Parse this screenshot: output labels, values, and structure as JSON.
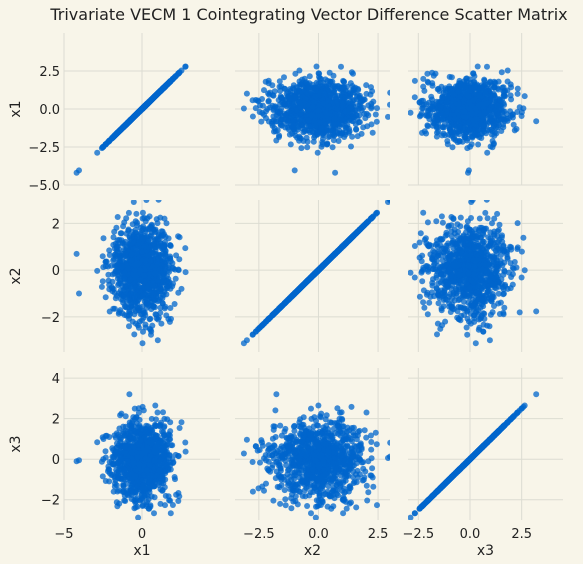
{
  "chart_data": {
    "type": "scatter_matrix",
    "title": "Trivariate VECM 1 Cointegrating Vector Difference Scatter Matrix",
    "variables": [
      "x1",
      "x2",
      "x3"
    ],
    "ranges": {
      "x1": [
        -5.0,
        5.0
      ],
      "x2": [
        -3.5,
        3.0
      ],
      "x3": [
        -3.0,
        4.5
      ]
    },
    "ticks": {
      "x1": {
        "row": [
          2.5,
          0.0,
          -2.5,
          -5.0
        ],
        "row_labels": [
          "2.5",
          "0.0",
          "−2.5",
          "−5.0"
        ],
        "col": [
          -5,
          0
        ],
        "col_labels": [
          "−5",
          "0"
        ]
      },
      "x2": {
        "row": [
          2,
          0,
          -2
        ],
        "row_labels": [
          "2",
          "0",
          "−2"
        ],
        "col": [
          -2.5,
          0.0,
          2.5
        ],
        "col_labels": [
          "−2.5",
          "0.0",
          "2.5"
        ]
      },
      "x3": {
        "row": [
          4,
          2,
          0,
          -2
        ],
        "row_labels": [
          "4",
          "2",
          "0",
          "−2"
        ],
        "col": [
          -2.5,
          0.0,
          2.5
        ],
        "col_labels": [
          "−2.5",
          "0.0",
          "2.5"
        ]
      }
    },
    "diagonal": "identity line of each variable against itself",
    "off_diagonal": "uncorrelated standard-normal scatter, roughly 1000 points per panel",
    "marker_color": "#0066cc",
    "grid": true
  }
}
